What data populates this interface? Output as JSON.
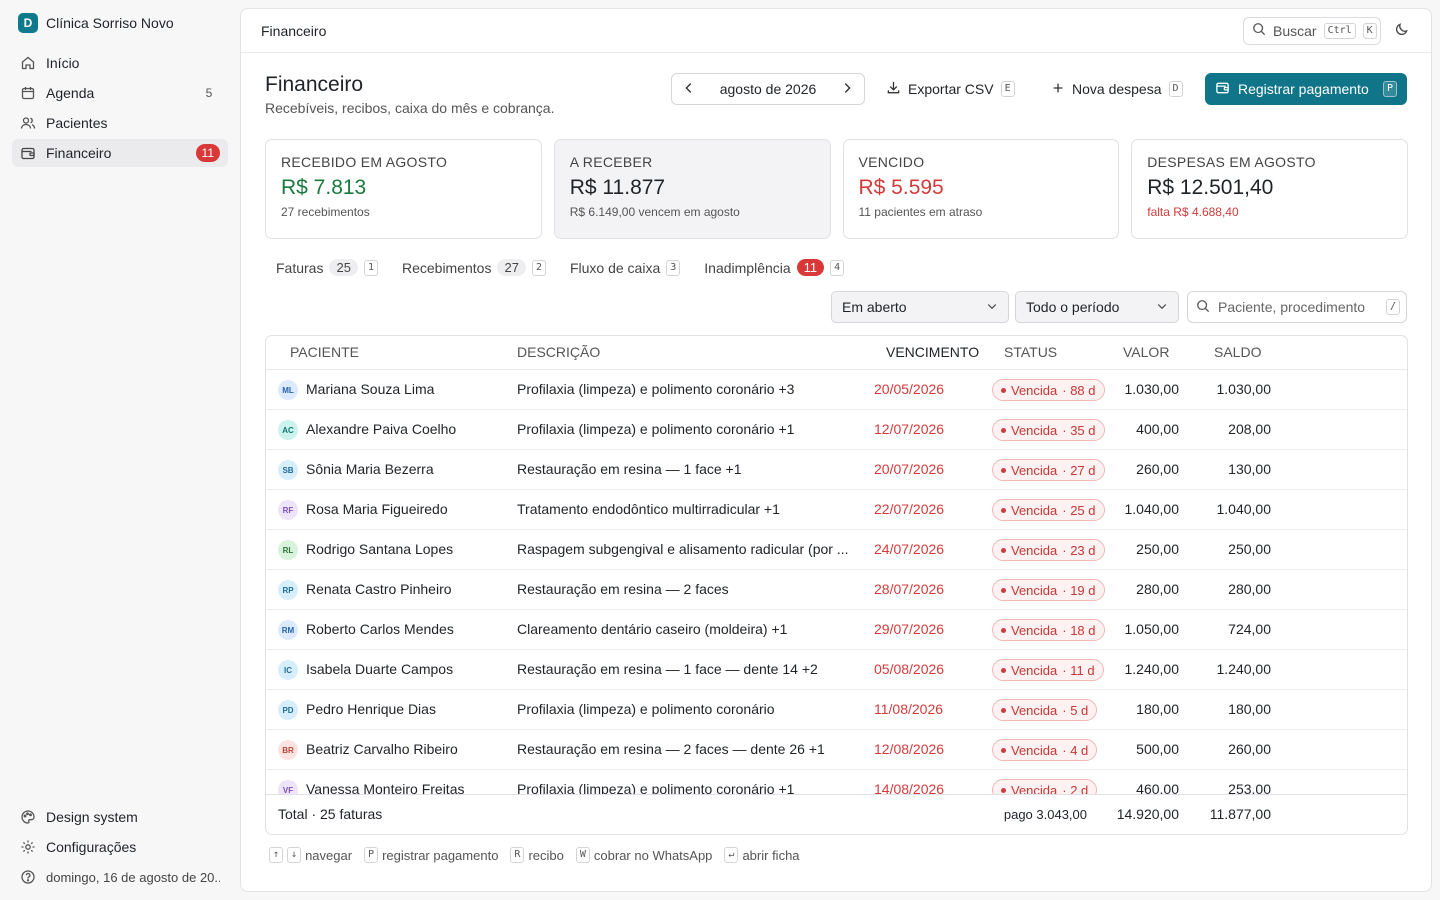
{
  "app": {
    "brand_initial": "D",
    "brand_name": "Clínica Sorriso Novo"
  },
  "sidebar": {
    "items": [
      {
        "label": "Início",
        "icon": "home-icon"
      },
      {
        "label": "Agenda",
        "icon": "calendar-icon",
        "count": "5"
      },
      {
        "label": "Pacientes",
        "icon": "users-icon"
      },
      {
        "label": "Financeiro",
        "icon": "wallet-icon",
        "count": "11",
        "active": true
      }
    ],
    "bottom": [
      {
        "label": "Design system",
        "icon": "palette-icon"
      },
      {
        "label": "Configurações",
        "icon": "gear-icon"
      }
    ],
    "date": "domingo, 16 de agosto de 20..."
  },
  "topbar": {
    "breadcrumb": "Financeiro",
    "search_label": "Buscar",
    "search_kbd1": "Ctrl",
    "search_kbd2": "K"
  },
  "header": {
    "title": "Financeiro",
    "subtitle": "Recebíveis, recibos, caixa do mês e cobrança."
  },
  "month_picker": {
    "value": "agosto de 2026"
  },
  "actions": {
    "export_label": "Exportar CSV",
    "export_kbd": "E",
    "new_expense_label": "Nova despesa",
    "new_expense_kbd": "D",
    "register_label": "Registrar pagamento",
    "register_kbd": "P"
  },
  "cards": [
    {
      "label": "RECEBIDO EM AGOSTO",
      "value": "R$ 7.813",
      "note": "27 recebimentos"
    },
    {
      "label": "A RECEBER",
      "value": "R$ 11.877",
      "note": "R$ 6.149,00 vencem em agosto"
    },
    {
      "label": "VENCIDO",
      "value": "R$ 5.595",
      "note": "11 pacientes em atraso"
    },
    {
      "label": "DESPESAS EM AGOSTO",
      "value": "R$ 12.501,40",
      "note": "falta R$ 4.688,40"
    }
  ],
  "tabs": [
    {
      "label": "Faturas",
      "count": "25",
      "kbd": "1"
    },
    {
      "label": "Recebimentos",
      "count": "27",
      "kbd": "2"
    },
    {
      "label": "Fluxo de caixa",
      "kbd": "3"
    },
    {
      "label": "Inadimplência",
      "count": "11",
      "kbd": "4"
    }
  ],
  "filters": {
    "status": "Em aberto",
    "period": "Todo o período",
    "search_placeholder": "Paciente, procedimento",
    "search_kbd": "/"
  },
  "table": {
    "headers": {
      "patient": "PACIENTE",
      "description": "DESCRIÇÃO",
      "due": "VENCIMENTO",
      "status": "STATUS",
      "value": "VALOR",
      "balance": "SALDO"
    },
    "rows": [
      {
        "initials": "ML",
        "patient": "Mariana Souza Lima",
        "description": "Profilaxia (limpeza) e polimento coronário +3",
        "due": "20/05/2026",
        "status": "Vencida",
        "days": "· 88 d",
        "value": "1.030,00",
        "balance": "1.030,00",
        "avatar_bg": "#dbeafe",
        "avatar_fg": "#2563a8"
      },
      {
        "initials": "AC",
        "patient": "Alexandre Paiva Coelho",
        "description": "Profilaxia (limpeza) e polimento coronário +1",
        "due": "12/07/2026",
        "status": "Vencida",
        "days": "· 35 d",
        "value": "400,00",
        "balance": "208,00",
        "avatar_bg": "#ccf2ee",
        "avatar_fg": "#0f7a70"
      },
      {
        "initials": "SB",
        "patient": "Sônia Maria Bezerra",
        "description": "Restauração em resina — 1 face +1",
        "due": "20/07/2026",
        "status": "Vencida",
        "days": "· 27 d",
        "value": "260,00",
        "balance": "130,00",
        "avatar_bg": "#d6eefb",
        "avatar_fg": "#1e6d99"
      },
      {
        "initials": "RF",
        "patient": "Rosa Maria Figueiredo",
        "description": "Tratamento endodôntico multirradicular +1",
        "due": "22/07/2026",
        "status": "Vencida",
        "days": "· 25 d",
        "value": "1.040,00",
        "balance": "1.040,00",
        "avatar_bg": "#ede4fb",
        "avatar_fg": "#7a4fb8"
      },
      {
        "initials": "RL",
        "patient": "Rodrigo Santana Lopes",
        "description": "Raspagem subgengival e alisamento radicular (por ...",
        "due": "24/07/2026",
        "status": "Vencida",
        "days": "· 23 d",
        "value": "250,00",
        "balance": "250,00",
        "avatar_bg": "#d8f2dc",
        "avatar_fg": "#2b7a3a"
      },
      {
        "initials": "RP",
        "patient": "Renata Castro Pinheiro",
        "description": "Restauração em resina — 2 faces",
        "due": "28/07/2026",
        "status": "Vencida",
        "days": "· 19 d",
        "value": "280,00",
        "balance": "280,00",
        "avatar_bg": "#d6eefb",
        "avatar_fg": "#1e6d99"
      },
      {
        "initials": "RM",
        "patient": "Roberto Carlos Mendes",
        "description": "Clareamento dentário caseiro (moldeira) +1",
        "due": "29/07/2026",
        "status": "Vencida",
        "days": "· 18 d",
        "value": "1.050,00",
        "balance": "724,00",
        "avatar_bg": "#dbeafe",
        "avatar_fg": "#2563a8"
      },
      {
        "initials": "IC",
        "patient": "Isabela Duarte Campos",
        "description": "Restauração em resina — 1 face — dente 14 +2",
        "due": "05/08/2026",
        "status": "Vencida",
        "days": "· 11 d",
        "value": "1.240,00",
        "balance": "1.240,00",
        "avatar_bg": "#d6eefb",
        "avatar_fg": "#1e6d99"
      },
      {
        "initials": "PD",
        "patient": "Pedro Henrique Dias",
        "description": "Profilaxia (limpeza) e polimento coronário",
        "due": "11/08/2026",
        "status": "Vencida",
        "days": "· 5 d",
        "value": "180,00",
        "balance": "180,00",
        "avatar_bg": "#d6eefb",
        "avatar_fg": "#1e6d99"
      },
      {
        "initials": "BR",
        "patient": "Beatriz Carvalho Ribeiro",
        "description": "Restauração em resina — 2 faces — dente 26 +1",
        "due": "12/08/2026",
        "status": "Vencida",
        "days": "· 4 d",
        "value": "500,00",
        "balance": "260,00",
        "avatar_bg": "#fde3df",
        "avatar_fg": "#b8463a"
      },
      {
        "initials": "VF",
        "patient": "Vanessa Monteiro Freitas",
        "description": "Profilaxia (limpeza) e polimento coronário +1",
        "due": "14/08/2026",
        "status": "Vencida",
        "days": "· 2 d",
        "value": "460,00",
        "balance": "253,00",
        "avatar_bg": "#ede4fb",
        "avatar_fg": "#7a4fb8"
      }
    ],
    "footer": {
      "total_label": "Total · 25 faturas",
      "paid": "pago 3.043,00",
      "value_total": "14.920,00",
      "balance_total": "11.877,00"
    }
  },
  "hints": [
    {
      "keys": [
        "↑",
        "↓"
      ],
      "label": "navegar"
    },
    {
      "keys": [
        "P"
      ],
      "label": "registrar pagamento"
    },
    {
      "keys": [
        "R"
      ],
      "label": "recibo"
    },
    {
      "keys": [
        "W"
      ],
      "label": "cobrar no WhatsApp"
    },
    {
      "keys": [
        "↵"
      ],
      "label": "abrir ficha"
    }
  ],
  "colors": {
    "accent": "#117589",
    "danger": "#d33b3b",
    "success": "#1a7a3d"
  }
}
